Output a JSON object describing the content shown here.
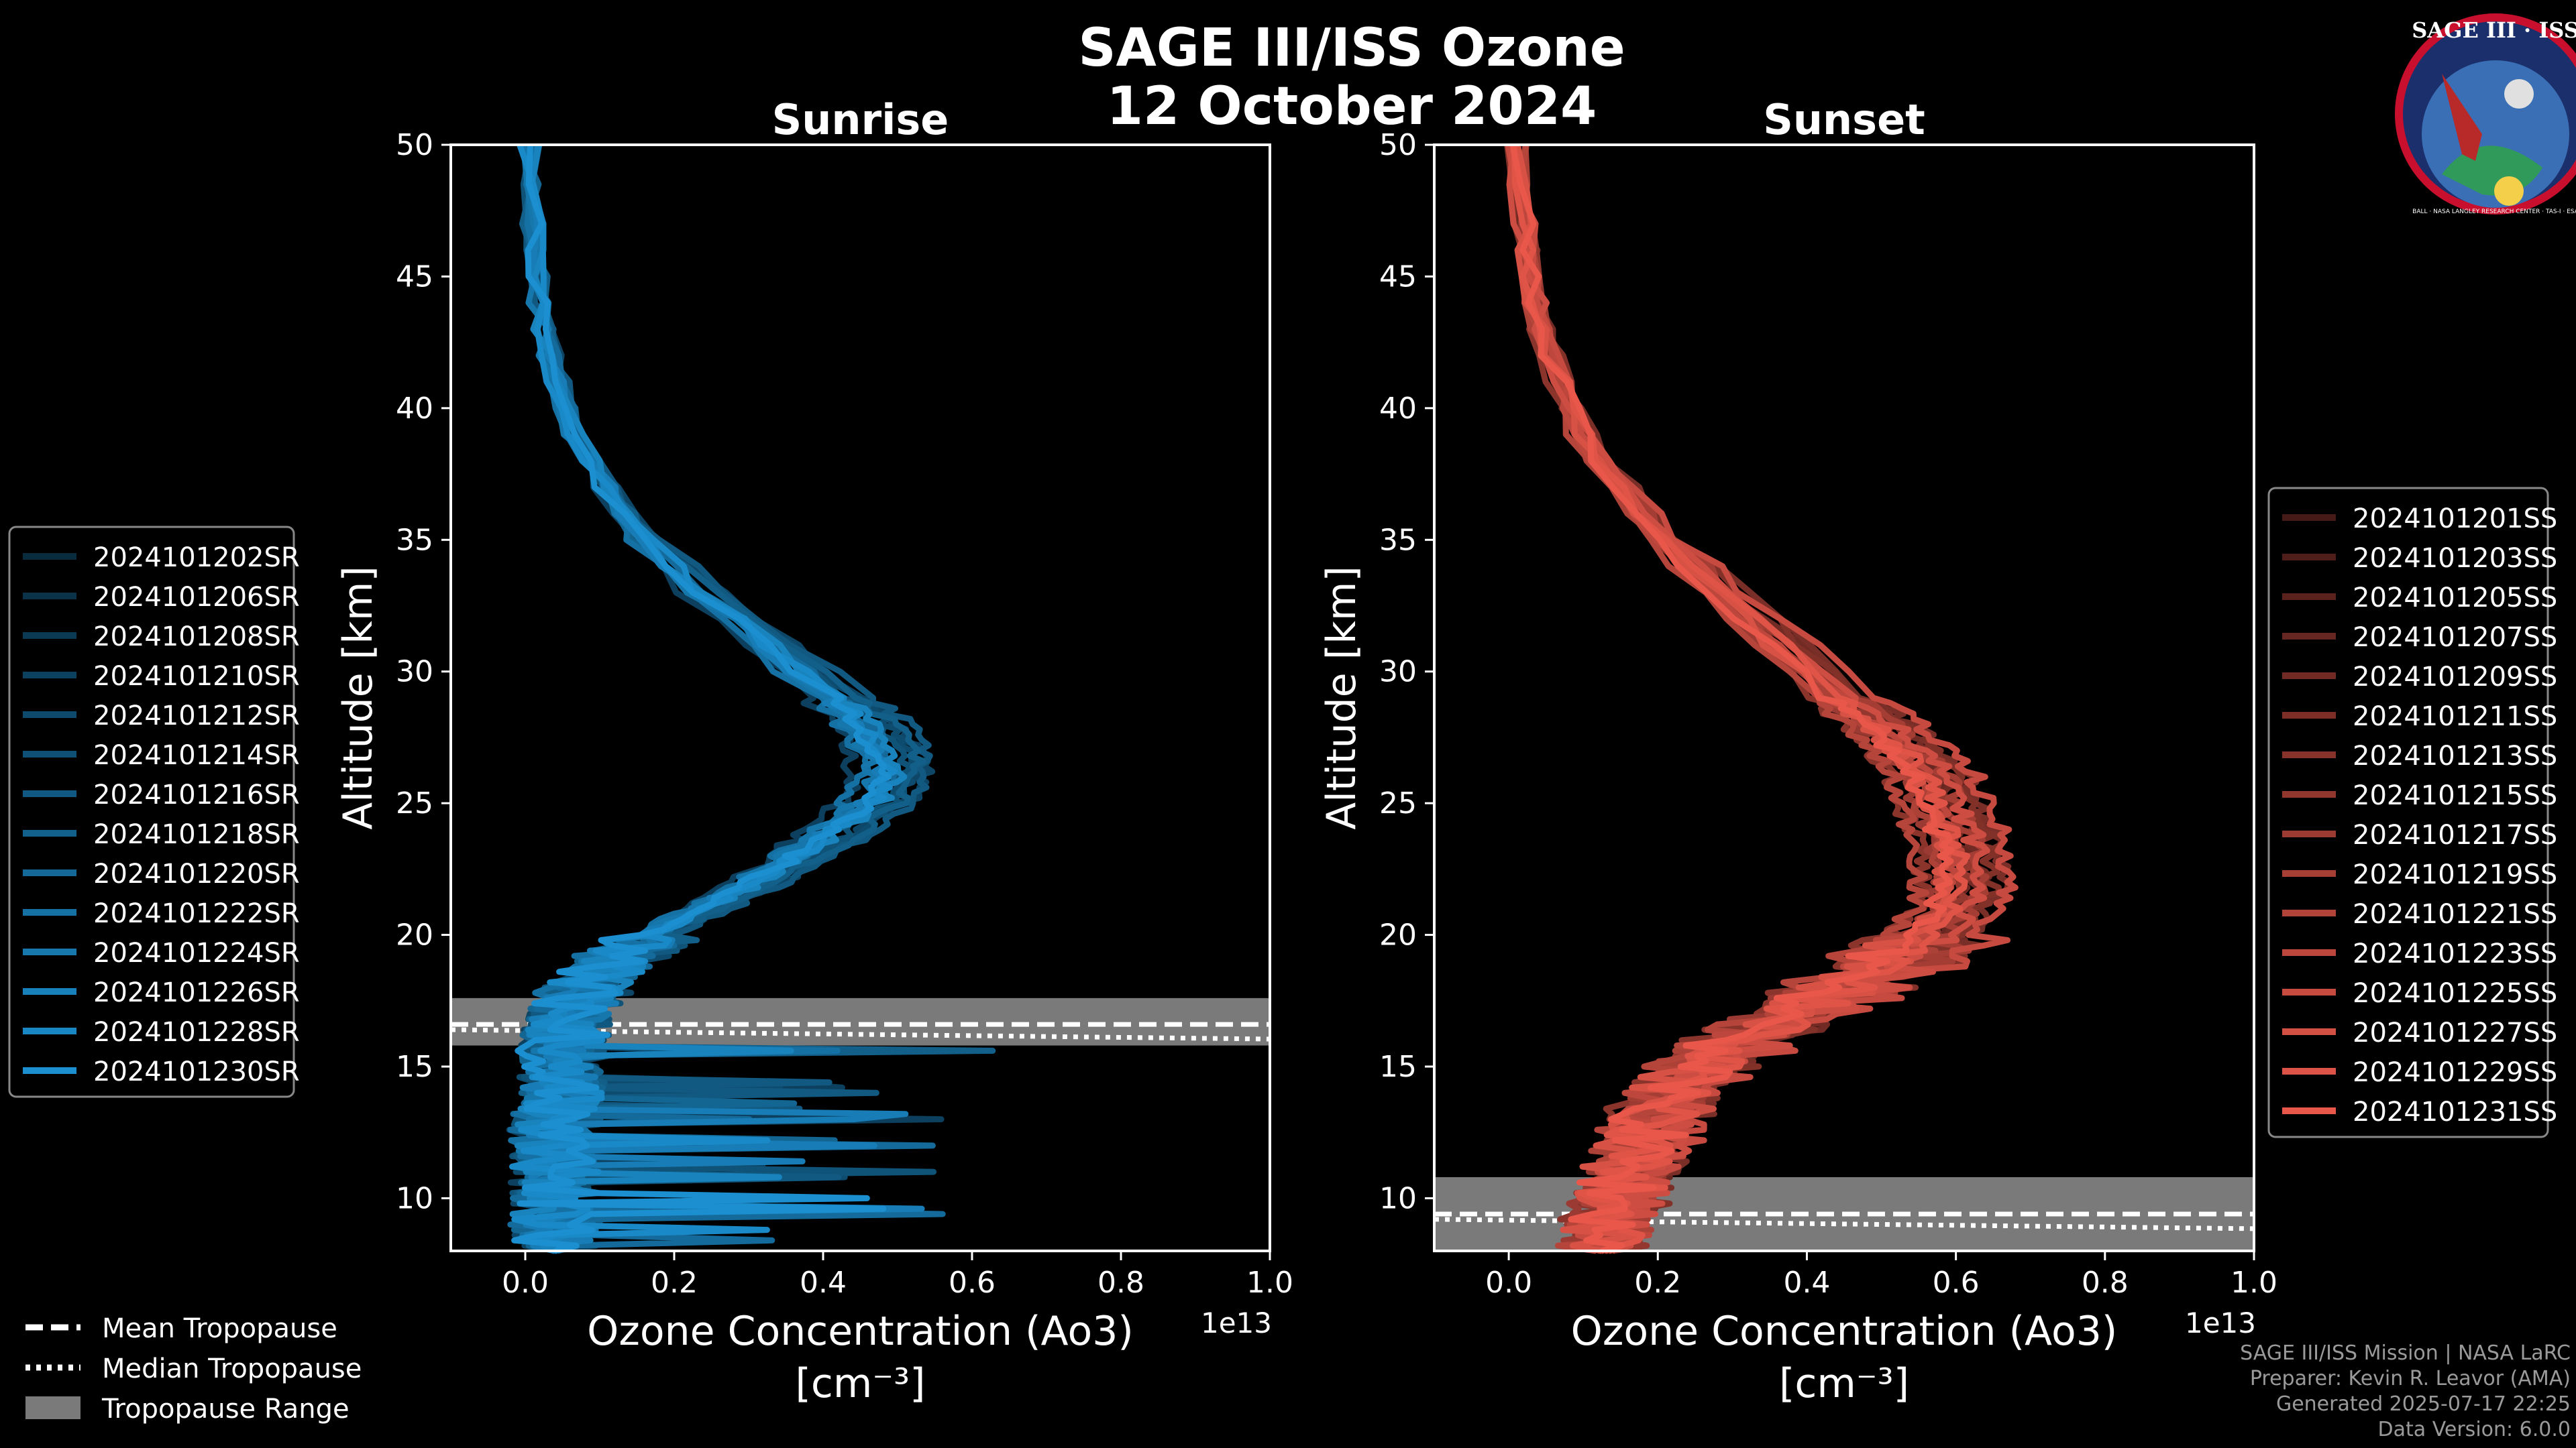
{
  "title_line1": "SAGE III/ISS Ozone",
  "title_line2": "12 October 2024",
  "badge": {
    "text": "SAGE III · ISS",
    "ring_text": "BALL · NASA LANGLEY RESEARCH CENTER · TAS-I · ESA"
  },
  "colors": {
    "sunrise": "#1b8fd0",
    "sunset": "#e8574a",
    "tropo_band": "#7a7a7a"
  },
  "chart_data": [
    {
      "type": "line",
      "title": "Sunrise",
      "xlabel": "Ozone Concentration (Ao3)",
      "xunit": "[cm⁻³]",
      "ylabel": "Altitude [km]",
      "xlim": [
        -0.1,
        1.0
      ],
      "ylim": [
        8,
        50
      ],
      "x_scale_label": "1e13",
      "xticks": [
        "0.0",
        "0.2",
        "0.4",
        "0.6",
        "0.8",
        "1.0"
      ],
      "yticks": [
        "10",
        "15",
        "20",
        "25",
        "30",
        "35",
        "40",
        "45",
        "50"
      ],
      "tropopause": {
        "mean": 16.6,
        "median": 16.4,
        "range": [
          15.8,
          17.6
        ]
      },
      "legend_title": "",
      "legend": [
        "2024101202SR",
        "2024101206SR",
        "2024101208SR",
        "2024101210SR",
        "2024101212SR",
        "2024101214SR",
        "2024101216SR",
        "2024101218SR",
        "2024101220SR",
        "2024101222SR",
        "2024101224SR",
        "2024101226SR",
        "2024101228SR",
        "2024101230SR"
      ],
      "series_mean": {
        "alt": [
          50,
          47,
          45,
          43,
          41,
          39,
          37,
          35,
          33,
          31,
          29,
          28,
          27,
          26,
          25,
          24,
          23,
          22,
          21,
          20,
          19,
          18,
          17,
          16,
          15,
          14,
          13,
          12,
          11,
          10,
          9,
          8
        ],
        "o3": [
          0.005,
          0.01,
          0.015,
          0.025,
          0.04,
          0.07,
          0.11,
          0.16,
          0.24,
          0.33,
          0.42,
          0.46,
          0.48,
          0.49,
          0.47,
          0.42,
          0.37,
          0.31,
          0.24,
          0.17,
          0.12,
          0.08,
          0.06,
          0.05,
          0.05,
          0.045,
          0.04,
          0.04,
          0.04,
          0.04,
          0.04,
          0.04
        ]
      }
    },
    {
      "type": "line",
      "title": "Sunset",
      "xlabel": "Ozone Concentration (Ao3)",
      "xunit": "[cm⁻³]",
      "ylabel": "Altitude [km]",
      "xlim": [
        -0.1,
        1.0
      ],
      "ylim": [
        8,
        50
      ],
      "x_scale_label": "1e13",
      "xticks": [
        "0.0",
        "0.2",
        "0.4",
        "0.6",
        "0.8",
        "1.0"
      ],
      "yticks": [
        "10",
        "15",
        "20",
        "25",
        "30",
        "35",
        "40",
        "45",
        "50"
      ],
      "tropopause": {
        "mean": 9.4,
        "median": 9.2,
        "range": [
          8.0,
          10.8
        ]
      },
      "legend": [
        "2024101201SS",
        "2024101203SS",
        "2024101205SS",
        "2024101207SS",
        "2024101209SS",
        "2024101211SS",
        "2024101213SS",
        "2024101215SS",
        "2024101217SS",
        "2024101219SS",
        "2024101221SS",
        "2024101223SS",
        "2024101225SS",
        "2024101227SS",
        "2024101229SS",
        "2024101231SS"
      ],
      "series_mean": {
        "alt": [
          50,
          47,
          45,
          43,
          41,
          39,
          37,
          35,
          33,
          31,
          29,
          28,
          27,
          26,
          25,
          24,
          23,
          22,
          21,
          20,
          19,
          18,
          17,
          16,
          15,
          14,
          13,
          12,
          11,
          10,
          9,
          8
        ],
        "o3": [
          0.01,
          0.02,
          0.03,
          0.045,
          0.07,
          0.1,
          0.15,
          0.21,
          0.29,
          0.37,
          0.45,
          0.5,
          0.54,
          0.57,
          0.58,
          0.6,
          0.61,
          0.61,
          0.6,
          0.57,
          0.52,
          0.46,
          0.39,
          0.32,
          0.26,
          0.22,
          0.2,
          0.18,
          0.16,
          0.15,
          0.14,
          0.13
        ]
      }
    }
  ],
  "tropo_legend": [
    "Mean Tropopause",
    "Median Tropopause",
    "Tropopause Range"
  ],
  "footer": [
    "SAGE III/ISS Mission | NASA LaRC",
    "Preparer: Kevin R. Leavor (AMA)",
    "Generated 2025-07-17 22:25",
    "Data Version: 6.0.0"
  ]
}
